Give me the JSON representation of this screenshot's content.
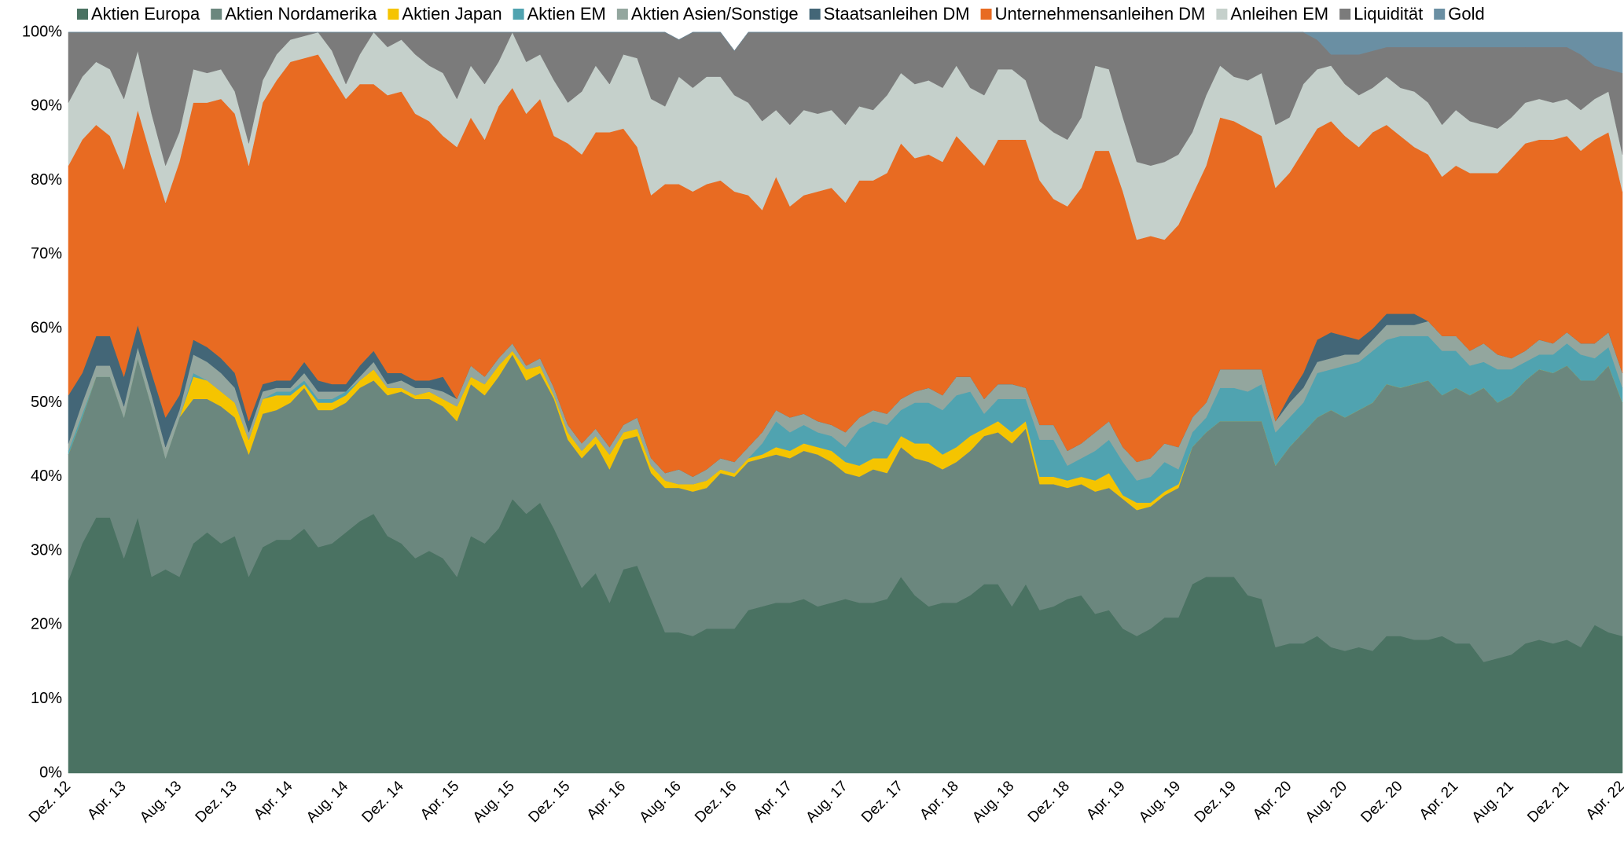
{
  "chart_data": {
    "type": "stacked_area",
    "categories": [
      "Dez. 12",
      null,
      null,
      null,
      "Apr. 13",
      null,
      null,
      null,
      "Aug. 13",
      null,
      null,
      null,
      "Dez. 13",
      null,
      null,
      null,
      "Apr. 14",
      null,
      null,
      null,
      "Aug. 14",
      null,
      null,
      null,
      "Dez. 14",
      null,
      null,
      null,
      "Apr. 15",
      null,
      null,
      null,
      "Aug. 15",
      null,
      null,
      null,
      "Dez. 15",
      null,
      null,
      null,
      "Apr. 16",
      null,
      null,
      null,
      "Aug. 16",
      null,
      null,
      null,
      "Dez. 16",
      null,
      null,
      null,
      "Apr. 17",
      null,
      null,
      null,
      "Aug. 17",
      null,
      null,
      null,
      "Dez. 17",
      null,
      null,
      null,
      "Apr. 18",
      null,
      null,
      null,
      "Aug. 18",
      null,
      null,
      null,
      "Dez. 18",
      null,
      null,
      null,
      "Apr. 19",
      null,
      null,
      null,
      "Aug. 19",
      null,
      null,
      null,
      "Dez. 19",
      null,
      null,
      null,
      "Apr. 20",
      null,
      null,
      null,
      "Aug. 20",
      null,
      null,
      null,
      "Dez. 20",
      null,
      null,
      null,
      "Apr. 21",
      null,
      null,
      null,
      "Aug. 21",
      null,
      null,
      null,
      "Dez. 21",
      null,
      null,
      null,
      "Apr. 22"
    ],
    "series": [
      {
        "name": "Aktien Europa",
        "color": "#4a7262",
        "values": [
          26,
          31,
          34.5,
          34.5,
          29,
          34.5,
          26.5,
          27.5,
          26.5,
          31,
          32.5,
          31,
          32,
          26.5,
          30.5,
          31.5,
          31.5,
          33,
          30.5,
          31,
          32.5,
          34,
          35,
          32,
          31,
          29,
          30,
          29,
          26.5,
          32,
          31,
          33,
          37,
          35,
          36.5,
          33,
          29,
          25,
          27,
          23,
          27.5,
          28,
          23.5,
          19,
          19,
          18.5,
          19.5,
          19.5,
          19.5,
          22,
          22.5,
          23,
          23,
          23.5,
          22.5,
          23,
          23.5,
          23,
          23,
          23.5,
          26.5,
          24,
          22.5,
          23,
          23,
          24,
          25.5,
          25.5,
          22.5,
          25.5,
          22,
          22.5,
          23.5,
          24,
          21.5,
          22,
          19.5,
          18.5,
          19.5,
          21,
          21,
          25.5,
          26.5,
          26.5,
          26.5,
          24,
          23.5,
          17,
          17.5,
          17.5,
          18.5,
          17,
          16.5,
          17,
          16.5,
          18.5,
          18.5,
          18,
          18,
          18.5,
          17.5,
          17.5,
          15,
          15.5,
          16,
          17.5,
          18,
          17.5,
          18,
          17,
          20,
          19,
          18.5
        ]
      },
      {
        "name": "Aktien Nordamerika",
        "color": "#6b877e",
        "values": [
          17,
          17,
          19,
          19,
          19,
          21.5,
          23,
          15,
          21.5,
          19.5,
          18,
          18.5,
          16,
          16.5,
          18,
          17.5,
          18.5,
          19,
          18.5,
          18,
          17.5,
          18,
          18,
          19,
          20.5,
          21.5,
          20.5,
          20.5,
          21,
          20.5,
          20,
          20.5,
          19.5,
          18,
          17.5,
          17.5,
          16,
          17.5,
          17.5,
          18,
          17.5,
          17.5,
          17,
          19.5,
          19.5,
          19.5,
          19,
          21,
          20.5,
          20,
          20,
          20,
          19.5,
          20,
          20.5,
          19,
          17,
          17,
          18,
          17,
          17.5,
          18.5,
          19.5,
          18,
          19,
          19.5,
          20,
          20.5,
          22,
          21,
          17,
          16.5,
          15,
          15,
          16.5,
          16.5,
          17.5,
          17,
          16.5,
          16.5,
          17.5,
          18.5,
          19.5,
          21,
          21,
          23.5,
          24,
          24.5,
          26.5,
          28.5,
          29.5,
          32,
          31.5,
          32,
          33.5,
          34,
          33.5,
          34.5,
          35,
          32.5,
          34.5,
          33.5,
          37,
          34.5,
          35,
          35.5,
          36.5,
          36.5,
          37,
          36,
          33,
          36,
          31.5
        ]
      },
      {
        "name": "Aktien Japan",
        "color": "#f5c400",
        "values": [
          0,
          0,
          0,
          0,
          0,
          0,
          0,
          0,
          0,
          3,
          2.5,
          2,
          2,
          2,
          2,
          2,
          1,
          0.5,
          1,
          1,
          1,
          1,
          1.5,
          1,
          0.5,
          0.5,
          1,
          1,
          2,
          1,
          1.5,
          1.5,
          0.5,
          1.5,
          1,
          0.5,
          1,
          1,
          1,
          2,
          1,
          1,
          1,
          1,
          0.5,
          1,
          1,
          0.5,
          0.5,
          0.5,
          0.5,
          1,
          1,
          1,
          1,
          1.5,
          1.5,
          1.5,
          1.5,
          2,
          1.5,
          2,
          2.5,
          2,
          2,
          2,
          1,
          1.5,
          1.5,
          1,
          1,
          1,
          1,
          1,
          1.5,
          2,
          0.5,
          1,
          0.5,
          0.5,
          0.5,
          0,
          0,
          0,
          0,
          0,
          0,
          0,
          0,
          0,
          0,
          0,
          0,
          0,
          0,
          0,
          0,
          0,
          0,
          0,
          0,
          0,
          0,
          0,
          0,
          0,
          0,
          0,
          0,
          0,
          0,
          0,
          0
        ]
      },
      {
        "name": "Aktien EM",
        "color": "#50a3b0",
        "values": [
          0.5,
          0.5,
          0,
          0,
          0,
          0,
          0,
          0,
          0,
          0.5,
          0,
          0,
          0,
          0,
          0,
          0.5,
          0.5,
          0.5,
          0.5,
          0.5,
          0.5,
          0,
          0,
          0,
          0,
          0,
          0,
          0,
          0,
          0,
          0,
          0,
          0,
          0,
          0,
          0,
          0,
          0,
          0,
          0,
          0,
          0,
          0,
          0,
          0,
          0,
          0,
          0,
          0,
          0,
          1.5,
          3.5,
          2.5,
          2.5,
          2,
          2,
          2,
          5,
          5,
          4.5,
          3.5,
          5.5,
          5.5,
          6,
          7,
          6,
          2,
          3,
          4.5,
          3,
          5,
          5,
          2,
          2.5,
          4,
          4.5,
          4.5,
          3,
          3.5,
          4,
          2,
          2,
          2,
          4.5,
          4.5,
          4,
          5,
          4.5,
          4,
          4,
          6,
          5.5,
          7,
          6.5,
          7,
          6,
          7,
          6.5,
          6,
          6,
          5,
          4,
          3.5,
          4.5,
          3.5,
          2.5,
          2,
          2.5,
          3,
          3.5,
          3,
          2.5,
          2
        ]
      },
      {
        "name": "Aktien Asien/Sonstige",
        "color": "#93a69e",
        "values": [
          1,
          1.5,
          1.5,
          1.5,
          1.5,
          1.5,
          1.5,
          1.5,
          1,
          2.5,
          2.5,
          2.5,
          2,
          1,
          1,
          0.5,
          0.5,
          1,
          1,
          1,
          0,
          0.5,
          1,
          0.5,
          1,
          1,
          0.5,
          1,
          1,
          1.5,
          1,
          1,
          1,
          0.5,
          1,
          1,
          1,
          1,
          1,
          1,
          1,
          1.5,
          1,
          1,
          2,
          1,
          1.5,
          1.5,
          1.5,
          1.5,
          1.5,
          1.5,
          2,
          1.5,
          1.5,
          1.5,
          2,
          1.5,
          1.5,
          1.5,
          1.5,
          1.5,
          2,
          2,
          2.5,
          2,
          2,
          2,
          2,
          1.5,
          2,
          2,
          2,
          2,
          2.5,
          2.5,
          2,
          2.5,
          2.5,
          2.5,
          3,
          2,
          2,
          2.5,
          2.5,
          3,
          2,
          1.5,
          2,
          2,
          1.5,
          1.5,
          1.5,
          1,
          1.5,
          2,
          1.5,
          1.5,
          2,
          2,
          2,
          2,
          2.5,
          2,
          1.5,
          1.5,
          2,
          1.5,
          1.5,
          1.5,
          2,
          2,
          2
        ]
      },
      {
        "name": "Staatsanleihen DM",
        "color": "#436677",
        "values": [
          6.5,
          4,
          4,
          4,
          4,
          3,
          3,
          4,
          2,
          2,
          2,
          2,
          2,
          1.5,
          1,
          1,
          1,
          1.5,
          1.5,
          1,
          1,
          1.5,
          1.5,
          1.5,
          1,
          1,
          1,
          2,
          0,
          0,
          0,
          0,
          0,
          0,
          0,
          0,
          0,
          0,
          0,
          0,
          0,
          0,
          0,
          0,
          0,
          0,
          0,
          0,
          0,
          0,
          0,
          0,
          0,
          0,
          0,
          0,
          0,
          0,
          0,
          0,
          0,
          0,
          0,
          0,
          0,
          0,
          0,
          0,
          0,
          0,
          0,
          0,
          0,
          0,
          0,
          0,
          0,
          0,
          0,
          0,
          0,
          0,
          0,
          0,
          0,
          0,
          0,
          0,
          1,
          2,
          3,
          3.5,
          2.5,
          2,
          1.5,
          1.5,
          1.5,
          1.5,
          0,
          0,
          0,
          0,
          0,
          0,
          0,
          0,
          0,
          0,
          0,
          0,
          0,
          0,
          0
        ]
      },
      {
        "name": "Unternehmensanleihen DM",
        "color": "#e86b22",
        "values": [
          31,
          31.5,
          28.5,
          27,
          28,
          29,
          29,
          29,
          31.5,
          32,
          33,
          35,
          35,
          34.5,
          38,
          40.5,
          43,
          41,
          44,
          41.5,
          38.5,
          38,
          36,
          37.5,
          38,
          36,
          35,
          32.5,
          34,
          33.5,
          32,
          34,
          34.5,
          34,
          35,
          34,
          38,
          39,
          40,
          42.5,
          40,
          36.5,
          35.5,
          39,
          38.5,
          38.5,
          38.5,
          37.5,
          36.5,
          34,
          30,
          31.5,
          28.5,
          29.5,
          31,
          32,
          31,
          32,
          31,
          32.5,
          34.5,
          31.5,
          31.5,
          31.5,
          32.5,
          30.5,
          31.5,
          33,
          33,
          33.5,
          33,
          30.5,
          33,
          34.5,
          38,
          36.5,
          34.5,
          30,
          30,
          27.5,
          30,
          30,
          32,
          34,
          33.5,
          32.5,
          31.5,
          31.5,
          30,
          30,
          28.5,
          28.5,
          27,
          26,
          26.5,
          25.5,
          24,
          22.5,
          22.5,
          21.5,
          23,
          24,
          23,
          24.5,
          27,
          28,
          27,
          27.5,
          26.5,
          26,
          27.5,
          27,
          24.5
        ]
      },
      {
        "name": "Anleihen EM",
        "color": "#c5d0cb",
        "values": [
          8.5,
          8.5,
          8.5,
          9,
          9.5,
          8,
          6,
          5,
          4,
          4.5,
          4,
          4,
          3,
          3,
          3,
          3.5,
          3,
          3,
          3,
          3.5,
          2,
          4,
          7,
          6.5,
          7,
          8,
          7.5,
          8.5,
          6.5,
          7,
          7.5,
          6,
          7.5,
          7,
          6,
          7.5,
          5.5,
          8.5,
          9,
          6.5,
          10,
          12,
          13,
          10.5,
          14.5,
          14,
          14.5,
          14,
          13,
          12.5,
          12,
          9,
          11,
          11.5,
          10.5,
          10.5,
          10.5,
          10,
          9.5,
          10.5,
          9.5,
          10,
          10,
          10,
          9.5,
          8.5,
          9.5,
          9.5,
          9.5,
          8,
          8,
          9,
          9,
          9.5,
          11.5,
          11,
          10,
          10.5,
          9.5,
          10.5,
          9.5,
          8.5,
          9.5,
          7,
          6,
          6.5,
          8.5,
          8.5,
          7.5,
          9,
          8,
          7.5,
          7,
          7,
          6,
          6.5,
          6.5,
          7.5,
          7,
          7,
          7.5,
          7,
          6.5,
          6,
          5.5,
          5.5,
          5.5,
          5,
          5,
          5.5,
          5.5,
          5.5,
          5
        ]
      },
      {
        "name": "Liquidität",
        "color": "#7b7b7b",
        "values": [
          9.5,
          6,
          4,
          5,
          9,
          2.5,
          11,
          18,
          13.5,
          5,
          5.5,
          5,
          8,
          15,
          6.5,
          3,
          1,
          0.5,
          0,
          2.5,
          7,
          3,
          0,
          2,
          1,
          3,
          4.5,
          5.5,
          9,
          4.5,
          7,
          4,
          0,
          4,
          3,
          6.5,
          9.5,
          8,
          4.5,
          7,
          3,
          3.5,
          9,
          10,
          5,
          7.5,
          6,
          6,
          6,
          9.5,
          12,
          10.5,
          12.5,
          10.5,
          11,
          10.5,
          12.5,
          10,
          10.5,
          8.5,
          5.5,
          7,
          6.5,
          7.5,
          4.5,
          7.5,
          8.5,
          5,
          5,
          6.5,
          12,
          13.5,
          14.5,
          11.5,
          4.5,
          5,
          11.5,
          17.5,
          18,
          17.5,
          16.5,
          13.5,
          8.5,
          4.5,
          6,
          6.5,
          5.5,
          12.5,
          11.5,
          7,
          4,
          1.5,
          4,
          5.5,
          5,
          4,
          5.5,
          6,
          7.5,
          10.5,
          8.5,
          10,
          10.5,
          11,
          9.5,
          7.5,
          7,
          7.5,
          7,
          7.5,
          4.5,
          3,
          11
        ]
      },
      {
        "name": "Gold",
        "color": "#6a8fa3",
        "values": [
          0,
          0,
          0,
          0,
          0,
          0,
          0,
          0,
          0,
          0,
          0,
          0,
          0,
          0,
          0,
          0,
          0,
          0,
          0,
          0,
          0,
          0,
          0,
          0,
          0,
          0,
          0,
          0,
          0,
          0,
          0,
          0,
          0,
          0,
          0,
          0,
          0,
          0,
          0,
          0,
          0,
          0,
          0,
          0,
          0,
          0,
          0,
          0,
          0,
          0,
          0,
          0,
          0,
          0,
          0,
          0,
          0,
          0,
          0,
          0,
          0,
          0,
          0,
          0,
          0,
          0,
          0,
          0,
          0,
          0,
          0,
          0,
          0,
          0,
          0,
          0,
          0,
          0,
          0,
          0,
          0,
          0,
          0,
          0,
          0,
          0,
          0,
          0,
          0,
          0,
          1,
          3,
          3,
          3,
          2.5,
          2,
          2,
          2,
          2,
          2,
          2,
          2,
          2,
          2,
          2,
          2,
          2,
          2,
          2,
          3,
          4.5,
          5,
          5.5
        ]
      }
    ],
    "ylim": [
      0,
      100
    ],
    "yticks": [
      {
        "value": 0,
        "label": "0%"
      },
      {
        "value": 10,
        "label": "10%"
      },
      {
        "value": 20,
        "label": "20%"
      },
      {
        "value": 30,
        "label": "30%"
      },
      {
        "value": 40,
        "label": "40%"
      },
      {
        "value": 50,
        "label": "50%"
      },
      {
        "value": 60,
        "label": "60%"
      },
      {
        "value": 70,
        "label": "70%"
      },
      {
        "value": 80,
        "label": "80%"
      },
      {
        "value": 90,
        "label": "90%"
      },
      {
        "value": 100,
        "label": "100%"
      }
    ],
    "legend": "top",
    "grid": false
  }
}
